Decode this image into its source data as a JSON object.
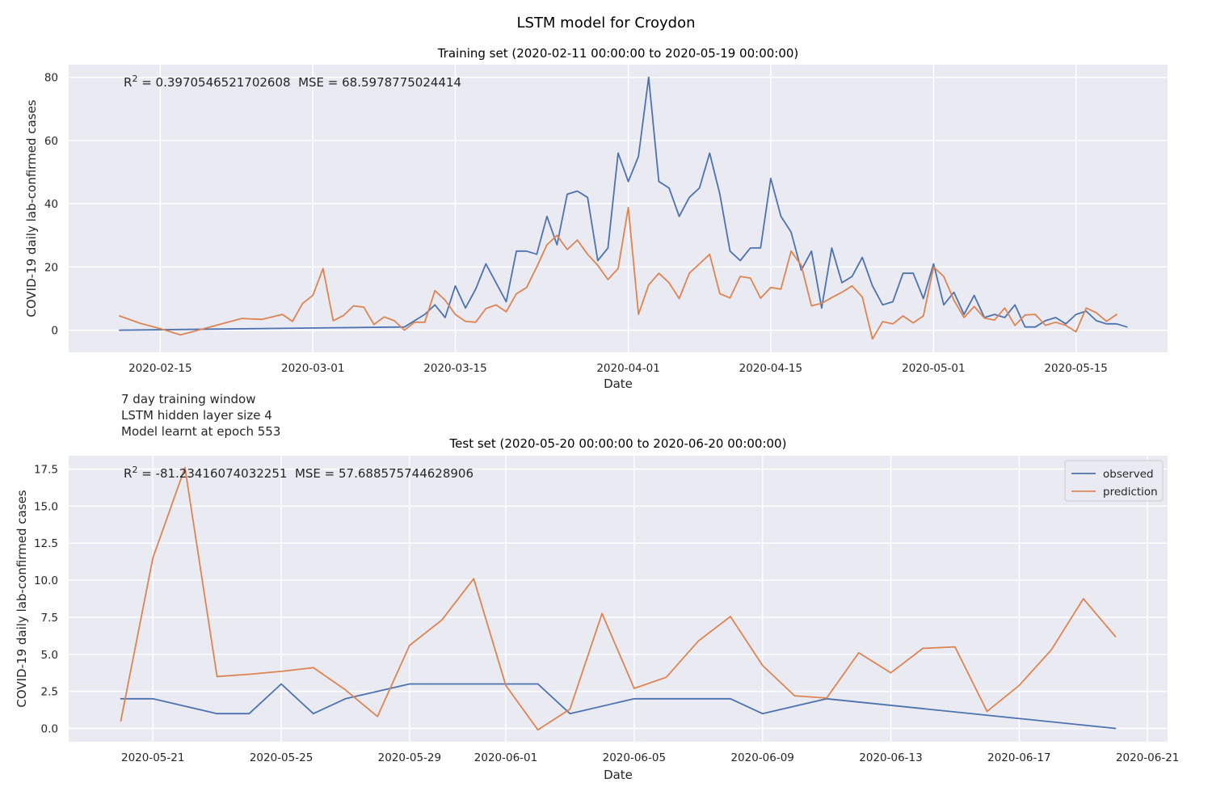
{
  "figure": {
    "suptitle": "LSTM model for Croydon",
    "info_lines": [
      "7 day training window",
      "LSTM hidden layer size 4",
      "Model learnt at epoch 553"
    ]
  },
  "colors": {
    "observed": "#4c72b0",
    "prediction": "#dd8452",
    "axes_bg": "#eaeaf2",
    "grid": "#ffffff"
  },
  "chart_data": [
    {
      "type": "line",
      "title": "Training set (2020-02-11 00:00:00 to 2020-05-19 00:00:00)",
      "xlabel": "Date",
      "ylabel": "COVID-19 daily lab-confirmed cases",
      "annotation": {
        "r2_label": "R",
        "r2_sup": "2",
        "text": " = 0.3970546521702608  MSE = 68.5978775024414"
      },
      "grid": true,
      "legend": null,
      "xlim": [
        "2020-02-06",
        "2020-05-24"
      ],
      "ylim": [
        -7,
        84
      ],
      "xticks": [
        "2020-02-15",
        "2020-03-01",
        "2020-03-15",
        "2020-04-01",
        "2020-04-15",
        "2020-05-01",
        "2020-05-15"
      ],
      "yticks": [
        0,
        20,
        40,
        60,
        80
      ],
      "ytick_labels": [
        "0",
        "20",
        "40",
        "60",
        "80"
      ],
      "series": [
        {
          "name": "observed",
          "points": [
            [
              "2020-02-11",
              0
            ],
            [
              "2020-03-10",
              1
            ],
            [
              "2020-03-11",
              3
            ],
            [
              "2020-03-12",
              5
            ],
            [
              "2020-03-13",
              8
            ],
            [
              "2020-03-14",
              4
            ],
            [
              "2020-03-15",
              14
            ],
            [
              "2020-03-16",
              7
            ],
            [
              "2020-03-17",
              13
            ],
            [
              "2020-03-18",
              21
            ],
            [
              "2020-03-19",
              15
            ],
            [
              "2020-03-20",
              9
            ],
            [
              "2020-03-21",
              25
            ],
            [
              "2020-03-22",
              25
            ],
            [
              "2020-03-23",
              24
            ],
            [
              "2020-03-24",
              36
            ],
            [
              "2020-03-25",
              27
            ],
            [
              "2020-03-26",
              43
            ],
            [
              "2020-03-27",
              44
            ],
            [
              "2020-03-28",
              42
            ],
            [
              "2020-03-29",
              22
            ],
            [
              "2020-03-30",
              26
            ],
            [
              "2020-03-31",
              56
            ],
            [
              "2020-04-01",
              47
            ],
            [
              "2020-04-02",
              55
            ],
            [
              "2020-04-03",
              80
            ],
            [
              "2020-04-04",
              47
            ],
            [
              "2020-04-05",
              45
            ],
            [
              "2020-04-06",
              36
            ],
            [
              "2020-04-07",
              42
            ],
            [
              "2020-04-08",
              45
            ],
            [
              "2020-04-09",
              56
            ],
            [
              "2020-04-10",
              43
            ],
            [
              "2020-04-11",
              25
            ],
            [
              "2020-04-12",
              22
            ],
            [
              "2020-04-13",
              26
            ],
            [
              "2020-04-14",
              26
            ],
            [
              "2020-04-15",
              48
            ],
            [
              "2020-04-16",
              36
            ],
            [
              "2020-04-17",
              31
            ],
            [
              "2020-04-18",
              19
            ],
            [
              "2020-04-19",
              25
            ],
            [
              "2020-04-20",
              7
            ],
            [
              "2020-04-21",
              26
            ],
            [
              "2020-04-22",
              15
            ],
            [
              "2020-04-23",
              17
            ],
            [
              "2020-04-24",
              23
            ],
            [
              "2020-04-25",
              14
            ],
            [
              "2020-04-26",
              8
            ],
            [
              "2020-04-27",
              9
            ],
            [
              "2020-04-28",
              18
            ],
            [
              "2020-04-29",
              18
            ],
            [
              "2020-04-30",
              10
            ],
            [
              "2020-05-01",
              21
            ],
            [
              "2020-05-02",
              8
            ],
            [
              "2020-05-03",
              12
            ],
            [
              "2020-05-04",
              5
            ],
            [
              "2020-05-05",
              11
            ],
            [
              "2020-05-06",
              4
            ],
            [
              "2020-05-07",
              5
            ],
            [
              "2020-05-08",
              4
            ],
            [
              "2020-05-09",
              8
            ],
            [
              "2020-05-10",
              1
            ],
            [
              "2020-05-11",
              1
            ],
            [
              "2020-05-12",
              3
            ],
            [
              "2020-05-13",
              4
            ],
            [
              "2020-05-14",
              2
            ],
            [
              "2020-05-15",
              5
            ],
            [
              "2020-05-16",
              6
            ],
            [
              "2020-05-17",
              3
            ],
            [
              "2020-05-18",
              2
            ],
            [
              "2020-05-19",
              2
            ],
            [
              "2020-05-20",
              1
            ]
          ]
        },
        {
          "name": "prediction",
          "points": [
            [
              "2020-02-11",
              4.5
            ],
            [
              "2020-02-13",
              2.2
            ],
            [
              "2020-02-15",
              0.5
            ],
            [
              "2020-02-17",
              -1.5
            ],
            [
              "2020-02-23",
              3.7
            ],
            [
              "2020-02-25",
              3.4
            ],
            [
              "2020-02-27",
              5
            ],
            [
              "2020-02-28",
              2.8
            ],
            [
              "2020-02-29",
              8.5
            ],
            [
              "2020-03-01",
              11
            ],
            [
              "2020-03-02",
              19.5
            ],
            [
              "2020-03-03",
              3
            ],
            [
              "2020-03-04",
              4.6
            ],
            [
              "2020-03-05",
              7.7
            ],
            [
              "2020-03-06",
              7.3
            ],
            [
              "2020-03-07",
              1.8
            ],
            [
              "2020-03-08",
              4.2
            ],
            [
              "2020-03-09",
              3
            ],
            [
              "2020-03-10",
              0
            ],
            [
              "2020-03-11",
              2.5
            ],
            [
              "2020-03-12",
              2.5
            ],
            [
              "2020-03-13",
              12.5
            ],
            [
              "2020-03-14",
              9.5
            ],
            [
              "2020-03-15",
              5
            ],
            [
              "2020-03-16",
              2.8
            ],
            [
              "2020-03-17",
              2.5
            ],
            [
              "2020-03-18",
              6.8
            ],
            [
              "2020-03-19",
              8
            ],
            [
              "2020-03-20",
              5.8
            ],
            [
              "2020-03-21",
              11.5
            ],
            [
              "2020-03-22",
              13.5
            ],
            [
              "2020-03-23",
              20
            ],
            [
              "2020-03-24",
              27
            ],
            [
              "2020-03-25",
              30
            ],
            [
              "2020-03-26",
              25.5
            ],
            [
              "2020-03-27",
              28.5
            ],
            [
              "2020-03-28",
              24
            ],
            [
              "2020-03-29",
              20.5
            ],
            [
              "2020-03-30",
              16
            ],
            [
              "2020-03-31",
              19.5
            ],
            [
              "2020-04-01",
              38.8
            ],
            [
              "2020-04-02",
              5
            ],
            [
              "2020-04-03",
              14.3
            ],
            [
              "2020-04-04",
              18
            ],
            [
              "2020-04-05",
              15
            ],
            [
              "2020-04-06",
              10
            ],
            [
              "2020-04-07",
              18
            ],
            [
              "2020-04-08",
              21
            ],
            [
              "2020-04-09",
              24
            ],
            [
              "2020-04-10",
              11.5
            ],
            [
              "2020-04-11",
              10.2
            ],
            [
              "2020-04-12",
              17
            ],
            [
              "2020-04-13",
              16.5
            ],
            [
              "2020-04-14",
              10.1
            ],
            [
              "2020-04-15",
              13.5
            ],
            [
              "2020-04-16",
              13
            ],
            [
              "2020-04-17",
              25
            ],
            [
              "2020-04-18",
              20.5
            ],
            [
              "2020-04-19",
              7.7
            ],
            [
              "2020-04-20",
              8.5
            ],
            [
              "2020-04-21",
              10.3
            ],
            [
              "2020-04-22",
              12
            ],
            [
              "2020-04-23",
              14
            ],
            [
              "2020-04-24",
              10.5
            ],
            [
              "2020-04-25",
              -2.8
            ],
            [
              "2020-04-26",
              2.7
            ],
            [
              "2020-04-27",
              2
            ],
            [
              "2020-04-28",
              4.5
            ],
            [
              "2020-04-29",
              2.3
            ],
            [
              "2020-04-30",
              4.5
            ],
            [
              "2020-05-01",
              20
            ],
            [
              "2020-05-02",
              17
            ],
            [
              "2020-05-03",
              9.5
            ],
            [
              "2020-05-04",
              4
            ],
            [
              "2020-05-05",
              7.5
            ],
            [
              "2020-05-06",
              3.8
            ],
            [
              "2020-05-07",
              3.2
            ],
            [
              "2020-05-08",
              7
            ],
            [
              "2020-05-09",
              1.5
            ],
            [
              "2020-05-10",
              4.8
            ],
            [
              "2020-05-11",
              5
            ],
            [
              "2020-05-12",
              1.5
            ],
            [
              "2020-05-13",
              2.5
            ],
            [
              "2020-05-14",
              1.5
            ],
            [
              "2020-05-15",
              -0.5
            ],
            [
              "2020-05-16",
              7
            ],
            [
              "2020-05-17",
              5.5
            ],
            [
              "2020-05-18",
              2.8
            ],
            [
              "2020-05-19",
              5
            ]
          ]
        }
      ]
    },
    {
      "type": "line",
      "title": "Test set (2020-05-20 00:00:00 to 2020-06-20 00:00:00)",
      "xlabel": "Date",
      "ylabel": "COVID-19 daily lab-confirmed cases",
      "annotation": {
        "r2_label": "R",
        "r2_sup": "2",
        "text": " = -81.23416074032251  MSE = 57.688575744628906"
      },
      "grid": true,
      "legend": {
        "position": "top-right",
        "entries": [
          "observed",
          "prediction"
        ]
      },
      "xlim": [
        "2020-05-18 09:00",
        "2020-06-21 15:00"
      ],
      "ylim": [
        -0.9,
        18.4
      ],
      "xticks": [
        "2020-05-21",
        "2020-05-25",
        "2020-05-29",
        "2020-06-01",
        "2020-06-05",
        "2020-06-09",
        "2020-06-13",
        "2020-06-17",
        "2020-06-21"
      ],
      "yticks": [
        0,
        2.5,
        5,
        7.5,
        10,
        12.5,
        15,
        17.5
      ],
      "ytick_labels": [
        "0.0",
        "2.5",
        "5.0",
        "7.5",
        "10.0",
        "12.5",
        "15.0",
        "17.5"
      ],
      "series": [
        {
          "name": "observed",
          "points": [
            [
              "2020-05-20",
              2
            ],
            [
              "2020-05-21",
              2
            ],
            [
              "2020-05-23",
              1
            ],
            [
              "2020-05-24",
              1
            ],
            [
              "2020-05-25",
              3
            ],
            [
              "2020-05-26",
              1
            ],
            [
              "2020-05-27",
              2
            ],
            [
              "2020-05-29",
              3
            ],
            [
              "2020-06-02",
              3
            ],
            [
              "2020-06-03",
              1
            ],
            [
              "2020-06-05",
              2
            ],
            [
              "2020-06-08",
              2
            ],
            [
              "2020-06-09",
              1
            ],
            [
              "2020-06-11",
              2
            ],
            [
              "2020-06-20",
              0
            ]
          ]
        },
        {
          "name": "prediction",
          "points": [
            [
              "2020-05-20",
              0.5
            ],
            [
              "2020-05-21",
              11.5
            ],
            [
              "2020-05-22",
              17.6
            ],
            [
              "2020-05-23",
              3.5
            ],
            [
              "2020-05-24",
              3.65
            ],
            [
              "2020-05-25",
              3.85
            ],
            [
              "2020-05-26",
              4.1
            ],
            [
              "2020-05-27",
              2.6
            ],
            [
              "2020-05-28",
              0.8
            ],
            [
              "2020-05-29",
              5.6
            ],
            [
              "2020-05-30",
              7.3
            ],
            [
              "2020-05-31",
              10.1
            ],
            [
              "2020-06-01",
              2.9
            ],
            [
              "2020-06-02",
              -0.1
            ],
            [
              "2020-06-03",
              1.3
            ],
            [
              "2020-06-04",
              7.75
            ],
            [
              "2020-06-05",
              2.7
            ],
            [
              "2020-06-06",
              3.45
            ],
            [
              "2020-06-07",
              5.9
            ],
            [
              "2020-06-08",
              7.55
            ],
            [
              "2020-06-09",
              4.25
            ],
            [
              "2020-06-10",
              2.2
            ],
            [
              "2020-06-11",
              2.05
            ],
            [
              "2020-06-12",
              5.1
            ],
            [
              "2020-06-13",
              3.75
            ],
            [
              "2020-06-14",
              5.4
            ],
            [
              "2020-06-15",
              5.5
            ],
            [
              "2020-06-16",
              1.15
            ],
            [
              "2020-06-17",
              2.9
            ],
            [
              "2020-06-18",
              5.3
            ],
            [
              "2020-06-19",
              8.75
            ],
            [
              "2020-06-20",
              6.2
            ]
          ]
        }
      ]
    }
  ]
}
